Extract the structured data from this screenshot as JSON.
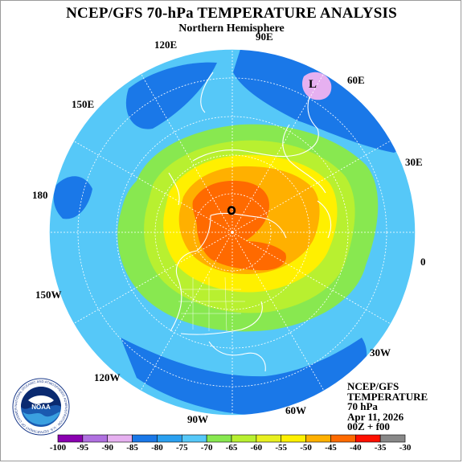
{
  "title": "NCEP/GFS 70-hPa TEMPERATURE ANALYSIS",
  "subtitle": "Northern Hemisphere",
  "longitude_labels": [
    "90E",
    "60E",
    "30E",
    "0",
    "30W",
    "60W",
    "90W",
    "120W",
    "150W",
    "180",
    "150E",
    "120E"
  ],
  "low_marker": "L",
  "info": {
    "line1": "NCEP/GFS",
    "line2": "TEMPERATURE",
    "line3": "70 hPa",
    "line4": "Apr 11, 2026",
    "line5": "00Z + f00"
  },
  "logo": {
    "name": "NOAA",
    "ring_text": "NATIONAL OCEANIC AND ATMOSPHERIC ADMINISTRATION · U.S. DEPARTMENT OF COMMERCE"
  },
  "colorbar": {
    "labels": [
      "-100",
      "-95",
      "-90",
      "-85",
      "-80",
      "-75",
      "-70",
      "-65",
      "-60",
      "-55",
      "-50",
      "-45",
      "-40",
      "-35",
      "-30"
    ],
    "colors": [
      "#8a00b0",
      "#b070e0",
      "#e6b0f0",
      "#1a78e8",
      "#2aa0f0",
      "#56c8f8",
      "#88e850",
      "#b8f030",
      "#e8f020",
      "#fff000",
      "#ffb000",
      "#ff6a00",
      "#ff1000",
      "#888888"
    ]
  },
  "colors": {
    "ocean_dark": "#1a78e8",
    "band_1": "#56c8f8",
    "band_2": "#88e850",
    "band_3": "#b8f030",
    "band_4": "#fff000",
    "band_5": "#ffb000",
    "core": "#ff6a00",
    "low": "#e6b0f0"
  }
}
